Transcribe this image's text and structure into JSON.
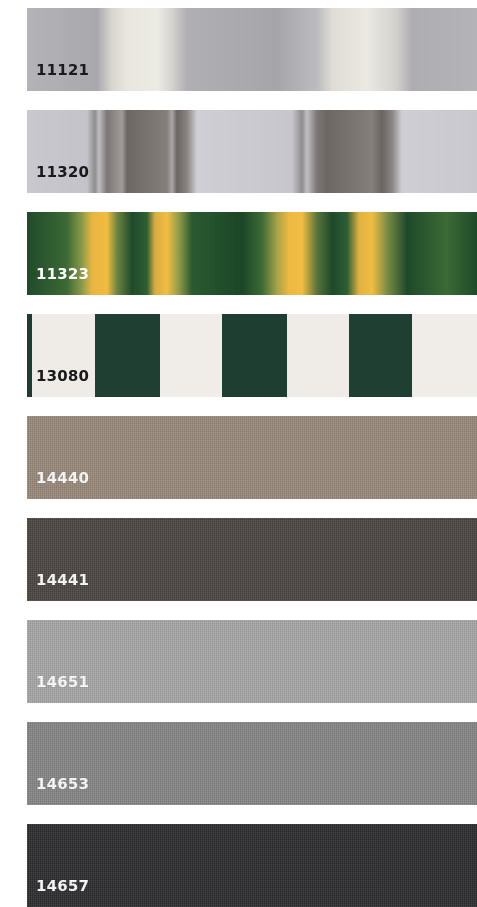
{
  "swatches": [
    {
      "label": "11121"
    },
    {
      "label": "11320"
    },
    {
      "label": "11323"
    },
    {
      "label": "13080"
    },
    {
      "label": "14440"
    },
    {
      "label": "14441"
    },
    {
      "label": "14651"
    },
    {
      "label": "14653"
    },
    {
      "label": "14657"
    }
  ]
}
